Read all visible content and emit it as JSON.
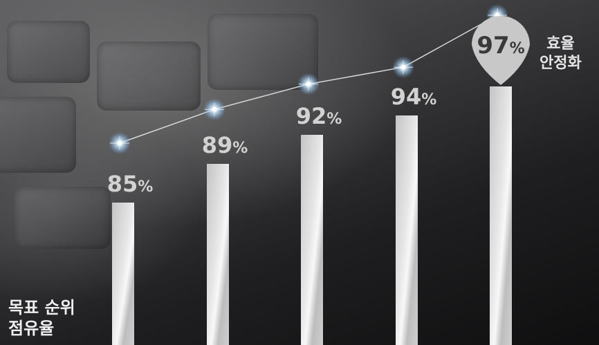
{
  "chart_data": {
    "type": "bar",
    "categories": [
      "",
      "",
      "",
      "",
      ""
    ],
    "values": [
      85,
      89,
      92,
      94,
      97
    ],
    "value_labels": [
      "85",
      "89",
      "92",
      "94",
      "97"
    ],
    "unit": "%",
    "ylim": [
      40,
      100
    ],
    "overlay_line": true,
    "highlight_index": 4,
    "highlight_style": "map-pin-badge",
    "colors": {
      "bar": "#d0d0d0",
      "bar_shine": "#f5f5f5",
      "line": "#d8d8d8",
      "glow": "#bfe4ff",
      "badge": "#c8c8c8",
      "label": "#d2d2d2",
      "badge_text": "#3a3a3a"
    },
    "annotations": {
      "bottom_left": [
        "목표 순위",
        "점유율"
      ],
      "top_right": [
        "효율",
        "안정화"
      ]
    }
  }
}
